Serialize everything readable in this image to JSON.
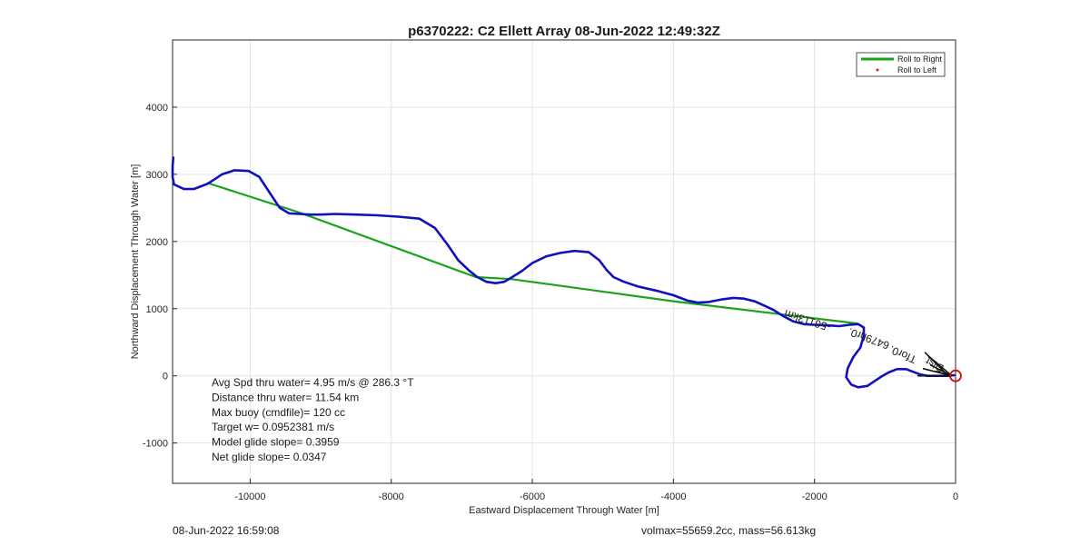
{
  "chart_data": {
    "type": "line",
    "title": "p6370222: C2 Ellett Array 08-Jun-2022 12:49:32Z",
    "xlabel": "Eastward Displacement Through Water [m]",
    "ylabel": "Northward Displacement Through Water [m]",
    "xlim": [
      -11100,
      0
    ],
    "ylim": [
      -1600,
      5000
    ],
    "x_ticks": [
      -10000,
      -8000,
      -6000,
      -4000,
      -2000,
      0
    ],
    "y_ticks": [
      -1000,
      0,
      1000,
      2000,
      3000,
      4000
    ],
    "grid": true,
    "legend_position": "top-right",
    "legend": [
      {
        "label": "Roll to Right",
        "color": "#1aa31a",
        "style": "line"
      },
      {
        "label": "Roll to Left",
        "color": "#e02020",
        "style": "marker"
      }
    ],
    "series": [
      {
        "name": "Roll to Right",
        "color": "#1aa31a",
        "x": [
          -10600,
          -9300,
          -6800,
          -6300,
          -4000,
          -1400
        ],
        "y": [
          2870,
          2430,
          1470,
          1440,
          1110,
          780
        ]
      },
      {
        "color": "#1010c0",
        "x": [
          -11090,
          -11100,
          -11100,
          -11080,
          -10940,
          -10800,
          -10600,
          -10400,
          -10220,
          -10020,
          -9870,
          -9720,
          -9580,
          -9450,
          -9300,
          -9150,
          -9000,
          -8800,
          -8500,
          -8200,
          -7900,
          -7600,
          -7380,
          -7200,
          -7050,
          -6900,
          -6780,
          -6650,
          -6520,
          -6400,
          -6300,
          -6150,
          -6000,
          -5800,
          -5600,
          -5400,
          -5200,
          -5050,
          -4950,
          -4850,
          -4700,
          -4500,
          -4250,
          -4000,
          -3800,
          -3650,
          -3500,
          -3300,
          -3150,
          -3000,
          -2850,
          -2700,
          -2580,
          -2460,
          -2300,
          -2150,
          -2000,
          -1800,
          -1650,
          -1500,
          -1380,
          -1300,
          -1300,
          -1350,
          -1450,
          -1530,
          -1550,
          -1480,
          -1380,
          -1250,
          -1150,
          -1050,
          -950,
          -830,
          -700,
          -600,
          -500,
          -400,
          -300,
          -200,
          -100,
          -20
        ],
        "y": [
          3250,
          3120,
          2960,
          2850,
          2780,
          2780,
          2860,
          3000,
          3060,
          3050,
          2960,
          2720,
          2500,
          2420,
          2410,
          2400,
          2400,
          2410,
          2400,
          2390,
          2370,
          2340,
          2200,
          1950,
          1720,
          1570,
          1470,
          1400,
          1380,
          1400,
          1460,
          1560,
          1680,
          1780,
          1830,
          1860,
          1840,
          1720,
          1580,
          1470,
          1400,
          1330,
          1270,
          1200,
          1120,
          1090,
          1100,
          1140,
          1160,
          1150,
          1110,
          1040,
          980,
          900,
          810,
          770,
          760,
          750,
          740,
          760,
          770,
          720,
          600,
          420,
          280,
          110,
          -20,
          -130,
          -170,
          -150,
          -80,
          -10,
          50,
          100,
          100,
          60,
          20,
          0,
          0,
          0,
          0,
          10
        ]
      }
    ],
    "text_box": [
      "Avg Spd thru water=  4.95 m/s @ 286.3 °T",
      "Distance thru water= 11.54 km",
      "Max buoy (cmdfile)= 120 cc",
      "Target w= 0.0952381 m/s",
      "Model glide slope= 0.3959",
      "Net glide slope= 0.0347"
    ],
    "overlay_text": "-56113km",
    "overlay_text_2": "6479hr0.",
    "overlay_text_3": "Tfor0.",
    "overlay_text_4": "Dist",
    "origin_marker": {
      "x": 0,
      "y": 0,
      "color": "#d01010"
    }
  },
  "footer": {
    "left": "08-Jun-2022 16:59:08",
    "right": "volmax=55659.2cc, mass=56.613kg"
  }
}
